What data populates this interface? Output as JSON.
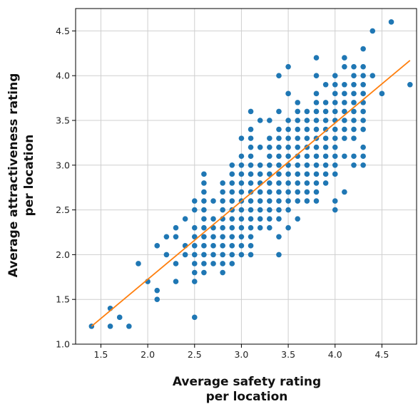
{
  "chart_data": {
    "type": "scatter",
    "title": "",
    "xlabel_lines": [
      "Average safety rating",
      "per location"
    ],
    "ylabel_lines": [
      "Average attractiveness rating",
      "per location"
    ],
    "xlim": [
      1.23,
      4.87
    ],
    "ylim": [
      1.0,
      4.75
    ],
    "xticks": [
      1.5,
      2.0,
      2.5,
      3.0,
      3.5,
      4.0,
      4.5
    ],
    "yticks": [
      1.0,
      1.5,
      2.0,
      2.5,
      3.0,
      3.5,
      4.0,
      4.5
    ],
    "grid": true,
    "legend": "none",
    "colors": {
      "points": "#1f77b4",
      "fit_line": "#ff7f0e",
      "grid": "#cfcfcf",
      "frame": "#000000"
    },
    "fit_line": {
      "x": [
        1.4,
        4.8
      ],
      "y": [
        1.2,
        4.17
      ]
    },
    "points": [
      [
        1.4,
        1.2
      ],
      [
        1.6,
        1.2
      ],
      [
        1.6,
        1.4
      ],
      [
        1.7,
        1.3
      ],
      [
        1.8,
        1.2
      ],
      [
        1.9,
        1.9
      ],
      [
        2.0,
        1.7
      ],
      [
        2.1,
        1.5
      ],
      [
        2.1,
        1.6
      ],
      [
        2.1,
        2.1
      ],
      [
        2.2,
        2.0
      ],
      [
        2.2,
        2.2
      ],
      [
        2.3,
        1.7
      ],
      [
        2.3,
        1.9
      ],
      [
        2.3,
        2.2
      ],
      [
        2.3,
        2.3
      ],
      [
        2.4,
        2.0
      ],
      [
        2.4,
        2.1
      ],
      [
        2.4,
        2.4
      ],
      [
        2.5,
        1.3
      ],
      [
        2.5,
        1.7
      ],
      [
        2.5,
        1.8
      ],
      [
        2.5,
        1.9
      ],
      [
        2.5,
        2.0
      ],
      [
        2.5,
        2.1
      ],
      [
        2.5,
        2.2
      ],
      [
        2.5,
        2.3
      ],
      [
        2.5,
        2.5
      ],
      [
        2.5,
        2.6
      ],
      [
        2.6,
        1.8
      ],
      [
        2.6,
        1.9
      ],
      [
        2.6,
        2.0
      ],
      [
        2.6,
        2.1
      ],
      [
        2.6,
        2.2
      ],
      [
        2.6,
        2.3
      ],
      [
        2.6,
        2.4
      ],
      [
        2.6,
        2.5
      ],
      [
        2.6,
        2.6
      ],
      [
        2.6,
        2.7
      ],
      [
        2.6,
        2.8
      ],
      [
        2.6,
        2.9
      ],
      [
        2.7,
        1.9
      ],
      [
        2.7,
        2.0
      ],
      [
        2.7,
        2.1
      ],
      [
        2.7,
        2.2
      ],
      [
        2.7,
        2.3
      ],
      [
        2.7,
        2.4
      ],
      [
        2.7,
        2.6
      ],
      [
        2.8,
        1.8
      ],
      [
        2.8,
        1.9
      ],
      [
        2.8,
        2.0
      ],
      [
        2.8,
        2.1
      ],
      [
        2.8,
        2.2
      ],
      [
        2.8,
        2.3
      ],
      [
        2.8,
        2.4
      ],
      [
        2.8,
        2.5
      ],
      [
        2.8,
        2.6
      ],
      [
        2.8,
        2.7
      ],
      [
        2.8,
        2.8
      ],
      [
        2.9,
        1.9
      ],
      [
        2.9,
        2.0
      ],
      [
        2.9,
        2.1
      ],
      [
        2.9,
        2.2
      ],
      [
        2.9,
        2.3
      ],
      [
        2.9,
        2.4
      ],
      [
        2.9,
        2.5
      ],
      [
        2.9,
        2.6
      ],
      [
        2.9,
        2.7
      ],
      [
        2.9,
        2.8
      ],
      [
        2.9,
        2.9
      ],
      [
        2.9,
        3.0
      ],
      [
        3.0,
        2.0
      ],
      [
        3.0,
        2.1
      ],
      [
        3.0,
        2.2
      ],
      [
        3.0,
        2.3
      ],
      [
        3.0,
        2.4
      ],
      [
        3.0,
        2.5
      ],
      [
        3.0,
        2.6
      ],
      [
        3.0,
        2.7
      ],
      [
        3.0,
        2.8
      ],
      [
        3.0,
        2.9
      ],
      [
        3.0,
        3.0
      ],
      [
        3.0,
        3.1
      ],
      [
        3.0,
        3.3
      ],
      [
        3.1,
        2.0
      ],
      [
        3.1,
        2.1
      ],
      [
        3.1,
        2.2
      ],
      [
        3.1,
        2.3
      ],
      [
        3.1,
        2.4
      ],
      [
        3.1,
        2.5
      ],
      [
        3.1,
        2.6
      ],
      [
        3.1,
        2.7
      ],
      [
        3.1,
        2.8
      ],
      [
        3.1,
        2.9
      ],
      [
        3.1,
        3.0
      ],
      [
        3.1,
        3.1
      ],
      [
        3.1,
        3.2
      ],
      [
        3.1,
        3.3
      ],
      [
        3.1,
        3.4
      ],
      [
        3.1,
        3.6
      ],
      [
        3.2,
        2.3
      ],
      [
        3.2,
        2.4
      ],
      [
        3.2,
        2.5
      ],
      [
        3.2,
        2.6
      ],
      [
        3.2,
        2.7
      ],
      [
        3.2,
        2.8
      ],
      [
        3.2,
        2.9
      ],
      [
        3.2,
        3.0
      ],
      [
        3.2,
        3.2
      ],
      [
        3.2,
        3.5
      ],
      [
        3.3,
        2.3
      ],
      [
        3.3,
        2.4
      ],
      [
        3.3,
        2.5
      ],
      [
        3.3,
        2.6
      ],
      [
        3.3,
        2.7
      ],
      [
        3.3,
        2.8
      ],
      [
        3.3,
        2.9
      ],
      [
        3.3,
        3.0
      ],
      [
        3.3,
        3.1
      ],
      [
        3.3,
        3.2
      ],
      [
        3.3,
        3.3
      ],
      [
        3.3,
        3.5
      ],
      [
        3.4,
        2.0
      ],
      [
        3.4,
        2.2
      ],
      [
        3.4,
        2.4
      ],
      [
        3.4,
        2.5
      ],
      [
        3.4,
        2.6
      ],
      [
        3.4,
        2.7
      ],
      [
        3.4,
        2.8
      ],
      [
        3.4,
        2.9
      ],
      [
        3.4,
        3.0
      ],
      [
        3.4,
        3.1
      ],
      [
        3.4,
        3.2
      ],
      [
        3.4,
        3.3
      ],
      [
        3.4,
        3.4
      ],
      [
        3.4,
        3.6
      ],
      [
        3.4,
        4.0
      ],
      [
        3.5,
        2.3
      ],
      [
        3.5,
        2.5
      ],
      [
        3.5,
        2.6
      ],
      [
        3.5,
        2.7
      ],
      [
        3.5,
        2.8
      ],
      [
        3.5,
        2.9
      ],
      [
        3.5,
        3.0
      ],
      [
        3.5,
        3.1
      ],
      [
        3.5,
        3.2
      ],
      [
        3.5,
        3.3
      ],
      [
        3.5,
        3.4
      ],
      [
        3.5,
        3.5
      ],
      [
        3.5,
        3.8
      ],
      [
        3.5,
        4.1
      ],
      [
        3.6,
        2.4
      ],
      [
        3.6,
        2.6
      ],
      [
        3.6,
        2.7
      ],
      [
        3.6,
        2.8
      ],
      [
        3.6,
        2.9
      ],
      [
        3.6,
        3.0
      ],
      [
        3.6,
        3.1
      ],
      [
        3.6,
        3.2
      ],
      [
        3.6,
        3.3
      ],
      [
        3.6,
        3.4
      ],
      [
        3.6,
        3.5
      ],
      [
        3.6,
        3.6
      ],
      [
        3.6,
        3.7
      ],
      [
        3.7,
        2.6
      ],
      [
        3.7,
        2.7
      ],
      [
        3.7,
        2.8
      ],
      [
        3.7,
        2.9
      ],
      [
        3.7,
        3.0
      ],
      [
        3.7,
        3.1
      ],
      [
        3.7,
        3.2
      ],
      [
        3.7,
        3.3
      ],
      [
        3.7,
        3.4
      ],
      [
        3.7,
        3.5
      ],
      [
        3.7,
        3.6
      ],
      [
        3.8,
        2.6
      ],
      [
        3.8,
        2.7
      ],
      [
        3.8,
        2.8
      ],
      [
        3.8,
        2.9
      ],
      [
        3.8,
        3.0
      ],
      [
        3.8,
        3.1
      ],
      [
        3.8,
        3.2
      ],
      [
        3.8,
        3.3
      ],
      [
        3.8,
        3.4
      ],
      [
        3.8,
        3.5
      ],
      [
        3.8,
        3.6
      ],
      [
        3.8,
        3.7
      ],
      [
        3.8,
        3.8
      ],
      [
        3.8,
        4.0
      ],
      [
        3.8,
        4.2
      ],
      [
        3.9,
        2.8
      ],
      [
        3.9,
        2.9
      ],
      [
        3.9,
        3.0
      ],
      [
        3.9,
        3.1
      ],
      [
        3.9,
        3.2
      ],
      [
        3.9,
        3.3
      ],
      [
        3.9,
        3.4
      ],
      [
        3.9,
        3.5
      ],
      [
        3.9,
        3.6
      ],
      [
        3.9,
        3.7
      ],
      [
        3.9,
        3.9
      ],
      [
        4.0,
        2.5
      ],
      [
        4.0,
        2.6
      ],
      [
        4.0,
        2.9
      ],
      [
        4.0,
        3.0
      ],
      [
        4.0,
        3.1
      ],
      [
        4.0,
        3.2
      ],
      [
        4.0,
        3.3
      ],
      [
        4.0,
        3.4
      ],
      [
        4.0,
        3.5
      ],
      [
        4.0,
        3.6
      ],
      [
        4.0,
        3.7
      ],
      [
        4.0,
        3.8
      ],
      [
        4.0,
        3.9
      ],
      [
        4.0,
        4.0
      ],
      [
        4.1,
        2.7
      ],
      [
        4.1,
        3.1
      ],
      [
        4.1,
        3.3
      ],
      [
        4.1,
        3.4
      ],
      [
        4.1,
        3.5
      ],
      [
        4.1,
        3.6
      ],
      [
        4.1,
        3.7
      ],
      [
        4.1,
        3.8
      ],
      [
        4.1,
        3.9
      ],
      [
        4.1,
        4.1
      ],
      [
        4.1,
        4.2
      ],
      [
        4.2,
        3.0
      ],
      [
        4.2,
        3.1
      ],
      [
        4.2,
        3.3
      ],
      [
        4.2,
        3.4
      ],
      [
        4.2,
        3.5
      ],
      [
        4.2,
        3.6
      ],
      [
        4.2,
        3.7
      ],
      [
        4.2,
        3.8
      ],
      [
        4.2,
        3.9
      ],
      [
        4.2,
        4.0
      ],
      [
        4.2,
        4.1
      ],
      [
        4.3,
        3.0
      ],
      [
        4.3,
        3.1
      ],
      [
        4.3,
        3.2
      ],
      [
        4.3,
        3.4
      ],
      [
        4.3,
        3.5
      ],
      [
        4.3,
        3.6
      ],
      [
        4.3,
        3.7
      ],
      [
        4.3,
        3.8
      ],
      [
        4.3,
        3.9
      ],
      [
        4.3,
        4.0
      ],
      [
        4.3,
        4.1
      ],
      [
        4.3,
        4.3
      ],
      [
        4.4,
        4.0
      ],
      [
        4.4,
        4.5
      ],
      [
        4.5,
        3.8
      ],
      [
        4.6,
        4.6
      ],
      [
        4.8,
        3.9
      ]
    ]
  }
}
